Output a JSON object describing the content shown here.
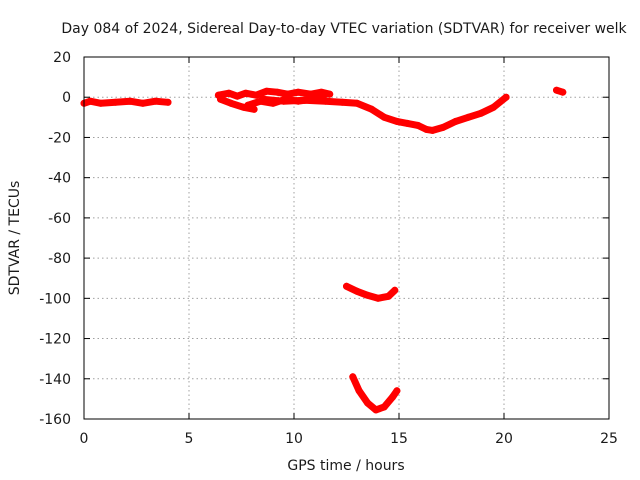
{
  "chart_data": {
    "type": "scatter",
    "title": "Day 084 of 2024, Sidereal Day-to-day VTEC variation (SDTVAR) for receiver welk",
    "xlabel": "GPS time / hours",
    "ylabel": "SDTVAR / TECUs",
    "xlim": [
      0,
      25
    ],
    "ylim": [
      -160,
      20
    ],
    "xticks": [
      0,
      5,
      10,
      15,
      20,
      25
    ],
    "yticks": [
      20,
      0,
      -20,
      -40,
      -60,
      -80,
      -100,
      -120,
      -140,
      -160
    ],
    "grid": true,
    "color": "#ff0000",
    "series": [
      {
        "name": "segment-1",
        "x": [
          0.0,
          0.3,
          0.8,
          1.5,
          2.2,
          2.8,
          3.4,
          4.0
        ],
        "y": [
          -3,
          -2,
          -3,
          -2.5,
          -2,
          -3,
          -2,
          -2.5
        ]
      },
      {
        "name": "segment-2",
        "x": [
          6.4,
          6.9,
          7.3,
          7.7,
          8.2,
          8.7,
          9.2,
          9.7,
          10.2,
          10.8,
          11.3,
          11.7
        ],
        "y": [
          1,
          2,
          0.5,
          2,
          1,
          3,
          2.5,
          1.5,
          2.5,
          1.5,
          2.5,
          1.5
        ]
      },
      {
        "name": "segment-3",
        "x": [
          6.5,
          7.0,
          7.6,
          8.1
        ],
        "y": [
          -1,
          -3,
          -5,
          -6
        ]
      },
      {
        "name": "segment-4",
        "x": [
          7.8,
          8.4,
          9.0,
          9.6,
          10.2,
          10.9,
          11.4
        ],
        "y": [
          -4,
          -2,
          -3,
          -1,
          -2,
          -1,
          -0.5
        ]
      },
      {
        "name": "segment-5",
        "x": [
          8.5,
          9.5,
          10.5,
          11.5,
          12.3,
          13.0,
          13.7,
          14.3,
          14.9,
          15.4,
          15.9,
          16.3,
          16.6,
          17.1,
          17.7,
          18.3,
          18.9,
          19.5,
          20.1
        ],
        "y": [
          -1,
          -2,
          -1.5,
          -2,
          -2.5,
          -3,
          -6,
          -10,
          -12,
          -13,
          -14,
          -16,
          -16.5,
          -15,
          -12,
          -10,
          -8,
          -5,
          0
        ]
      },
      {
        "name": "segment-6",
        "x": [
          22.5,
          22.8
        ],
        "y": [
          3.5,
          2.5
        ]
      },
      {
        "name": "segment-7",
        "x": [
          12.5,
          13.0,
          13.5,
          14.0,
          14.5,
          14.8
        ],
        "y": [
          -94,
          -96.5,
          -98.5,
          -100,
          -99,
          -96
        ]
      },
      {
        "name": "segment-8",
        "x": [
          12.8,
          13.1,
          13.5,
          13.9,
          14.3,
          14.7,
          14.9
        ],
        "y": [
          -139,
          -146,
          -152,
          -155.5,
          -154,
          -149,
          -146
        ]
      }
    ]
  }
}
